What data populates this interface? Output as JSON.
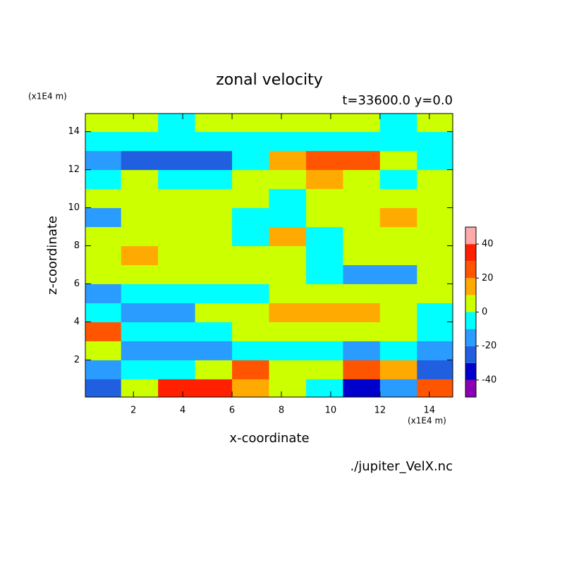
{
  "chart_data": {
    "type": "contour",
    "title": "zonal velocity",
    "subtitle": "t=33600.0 y=0.0",
    "xlabel": "x-coordinate",
    "ylabel": "z-coordinate",
    "x_unit": "(x1E4 m)",
    "y_unit": "(x1E4 m)",
    "source": "./jupiter_VelX.nc",
    "xlim": [
      0.05,
      14.95
    ],
    "ylim": [
      0.05,
      14.95
    ],
    "xticks": [
      2,
      4,
      6,
      8,
      10,
      12,
      14
    ],
    "yticks": [
      2,
      4,
      6,
      8,
      10,
      12,
      14
    ],
    "levels": [
      -50,
      -40,
      -30,
      -20,
      -10,
      0,
      10,
      20,
      30,
      40,
      50
    ],
    "colors": [
      "#8c00b4",
      "#0000cc",
      "#2060e0",
      "#2a9bff",
      "#00ffff",
      "#ccff00",
      "#ffaa00",
      "#ff5500",
      "#ff2000",
      "#ffaaaa"
    ],
    "colorbar_ticks": [
      -40,
      -20,
      0,
      20,
      40
    ],
    "x": [
      0.75,
      2.25,
      3.75,
      5.25,
      6.75,
      8.25,
      9.75,
      11.25,
      12.75,
      14.25
    ],
    "y": [
      0.5,
      1.5,
      2.5,
      3.5,
      4.5,
      5.5,
      6.5,
      7.5,
      8.5,
      9.5,
      10.5,
      11.5,
      12.5,
      13.5,
      14.5
    ],
    "z": [
      [
        -30,
        5,
        30,
        35,
        15,
        5,
        -5,
        -35,
        -15,
        20
      ],
      [
        -20,
        -5,
        -10,
        5,
        25,
        5,
        5,
        25,
        10,
        -25
      ],
      [
        5,
        -15,
        -20,
        -15,
        -10,
        -5,
        -10,
        -15,
        -5,
        -20
      ],
      [
        25,
        -5,
        -5,
        -5,
        5,
        5,
        5,
        5,
        5,
        -10
      ],
      [
        -5,
        -15,
        -15,
        5,
        5,
        15,
        15,
        15,
        5,
        -5
      ],
      [
        -15,
        -5,
        -10,
        -5,
        -5,
        5,
        5,
        5,
        5,
        5
      ],
      [
        5,
        5,
        5,
        5,
        5,
        5,
        -5,
        -15,
        -15,
        5
      ],
      [
        5,
        15,
        5,
        5,
        5,
        5,
        -5,
        5,
        5,
        5
      ],
      [
        5,
        5,
        5,
        5,
        -5,
        15,
        -5,
        5,
        5,
        5
      ],
      [
        -15,
        5,
        5,
        5,
        -5,
        -5,
        5,
        5,
        15,
        5
      ],
      [
        5,
        5,
        5,
        5,
        5,
        -5,
        5,
        5,
        5,
        5
      ],
      [
        -5,
        5,
        -5,
        -5,
        5,
        5,
        15,
        5,
        -5,
        5
      ],
      [
        -15,
        -25,
        -30,
        -25,
        -5,
        15,
        25,
        20,
        5,
        -5
      ],
      [
        -5,
        -5,
        -5,
        -5,
        -5,
        -5,
        -5,
        -5,
        -5,
        -5
      ],
      [
        5,
        5,
        -5,
        5,
        5,
        5,
        5,
        5,
        -5,
        5
      ]
    ]
  }
}
